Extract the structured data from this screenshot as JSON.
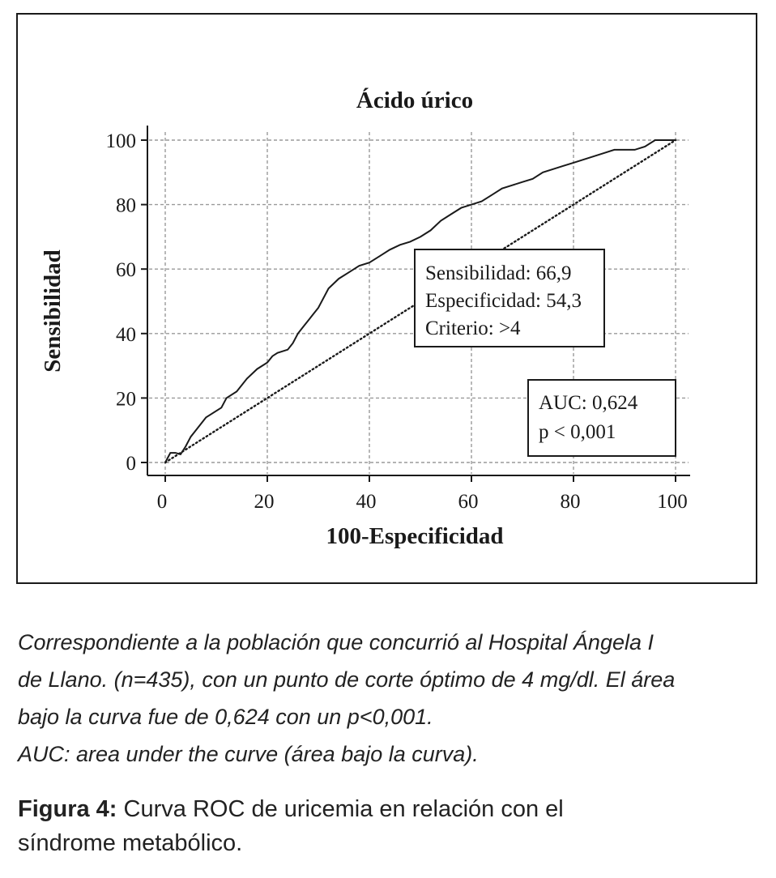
{
  "chart_data": {
    "type": "line",
    "title": "Ácido úrico",
    "xlabel": "100-Especificidad",
    "ylabel": "Sensibilidad",
    "xlim": [
      0,
      100
    ],
    "ylim": [
      0,
      100
    ],
    "xticks": [
      "0",
      "20",
      "40",
      "60",
      "80",
      "100"
    ],
    "yticks": [
      "0",
      "20",
      "40",
      "60",
      "80",
      "100"
    ],
    "grid": true,
    "series": [
      {
        "style": "solid",
        "x": [
          0,
          1,
          2,
          3,
          4,
          5,
          6,
          7,
          8,
          9,
          11,
          12,
          14,
          16,
          18,
          20,
          21,
          22,
          24,
          25,
          26,
          27,
          28,
          29,
          30,
          32,
          34,
          36,
          38,
          40,
          42,
          44,
          46,
          48,
          50,
          52,
          54,
          56,
          58,
          60,
          62,
          64,
          66,
          68,
          70,
          72,
          74,
          76,
          78,
          80,
          82,
          84,
          86,
          88,
          90,
          92,
          94,
          96,
          98,
          100
        ],
        "y": [
          0,
          3,
          3,
          2.5,
          5,
          8,
          10,
          12,
          14,
          15,
          17,
          20,
          22,
          26,
          29,
          31,
          33,
          34,
          35,
          37,
          40,
          42,
          44,
          46,
          48,
          54,
          57,
          59,
          61,
          62,
          64,
          66,
          67.5,
          68.5,
          70,
          72,
          75,
          77,
          79,
          80,
          81,
          83,
          85,
          86,
          87,
          88,
          90,
          91,
          92,
          93,
          94,
          95,
          96,
          97,
          97,
          97,
          98,
          100,
          100,
          100
        ]
      },
      {
        "style": "dotted",
        "x": [
          0,
          100
        ],
        "y": [
          0,
          100
        ]
      }
    ],
    "annotations": [
      {
        "lines": [
          "Sensibilidad: 66,9",
          "Especificidad: 54,3",
          "Criterio: >4"
        ]
      },
      {
        "lines": [
          "AUC: 0,624",
          "p < 0,001"
        ]
      }
    ]
  },
  "caption": {
    "lines": [
      "Correspondiente a la población que concurrió al Hospital Ángela I",
      "de Llano. (n=435), con un punto de corte óptimo de 4 mg/dl. El área",
      "bajo la curva fue de 0,624 con un p<0,001.",
      "AUC: area under the curve (área bajo la curva)."
    ]
  },
  "figure": {
    "label": "Figura 4:",
    "title_line1": " Curva ROC de uricemia en relación con el",
    "title_line2": "síndrome metabólico."
  }
}
